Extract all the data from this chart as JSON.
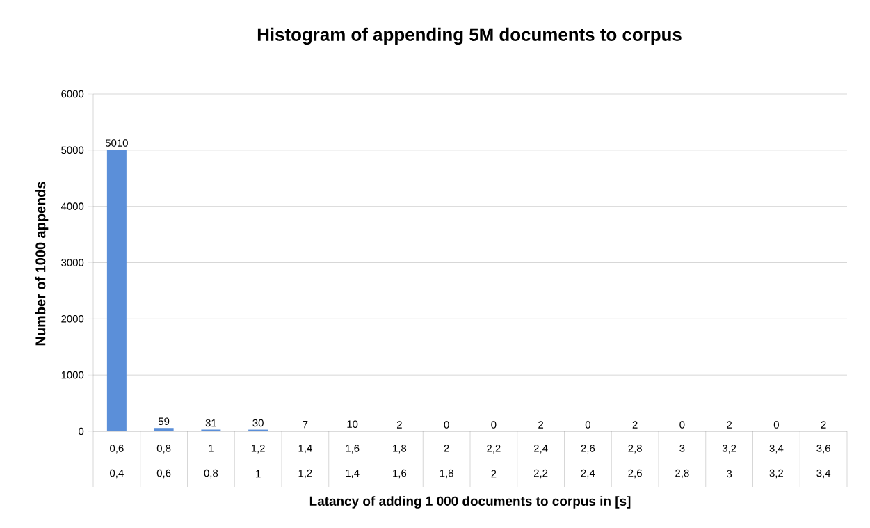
{
  "chart_data": {
    "type": "bar",
    "title": "Histogram of appending 5M documents to corpus",
    "xlabel": "Latancy of adding 1 000 documents to corpus in [s]",
    "ylabel": "Number of 1000 appends",
    "categories": [
      "0,6",
      "0,8",
      "1",
      "1,2",
      "1,4",
      "1,6",
      "1,8",
      "2",
      "2,2",
      "2,4",
      "2,6",
      "2,8",
      "3",
      "3,2",
      "3,4",
      "3,6"
    ],
    "annotations": [
      "0,4",
      "0,6",
      "0,8",
      "1",
      "1,2",
      "1,4",
      "1,6",
      "1,8",
      "2",
      "2,2",
      "2,4",
      "2,6",
      "2,8",
      "3",
      "3,2",
      "3,4"
    ],
    "values": [
      5010,
      59,
      31,
      30,
      7,
      10,
      2,
      0,
      0,
      2,
      0,
      2,
      0,
      2,
      0,
      2
    ],
    "color": "#5b8fd9",
    "data_labels": true,
    "grid": "y",
    "ylim": [
      0,
      6000
    ],
    "yticks": [
      0,
      1000,
      2000,
      3000,
      4000,
      5000,
      6000
    ]
  }
}
